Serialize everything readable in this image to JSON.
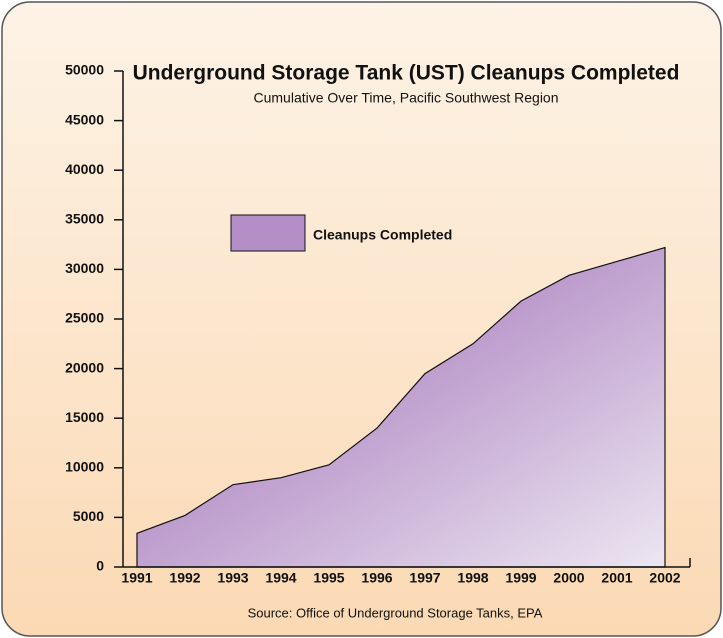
{
  "chart_data": {
    "type": "area",
    "title": "Underground Storage Tank (UST) Cleanups Completed",
    "subtitle": "Cumulative Over Time, Pacific Southwest Region",
    "source": "Source: Office of Underground Storage Tanks, EPA",
    "categories": [
      "1991",
      "1992",
      "1993",
      "1994",
      "1995",
      "1996",
      "1997",
      "1998",
      "1999",
      "2000",
      "2001",
      "2002"
    ],
    "series": [
      {
        "name": "Cleanups Completed",
        "color": "#b48ec6",
        "values": [
          3400,
          5200,
          8300,
          9000,
          10300,
          14000,
          19500,
          22500,
          26800,
          29400,
          30800,
          32200
        ]
      }
    ],
    "ylim": [
      0,
      50000
    ],
    "yticks": [
      0,
      5000,
      10000,
      15000,
      20000,
      25000,
      30000,
      35000,
      40000,
      45000,
      50000
    ]
  }
}
